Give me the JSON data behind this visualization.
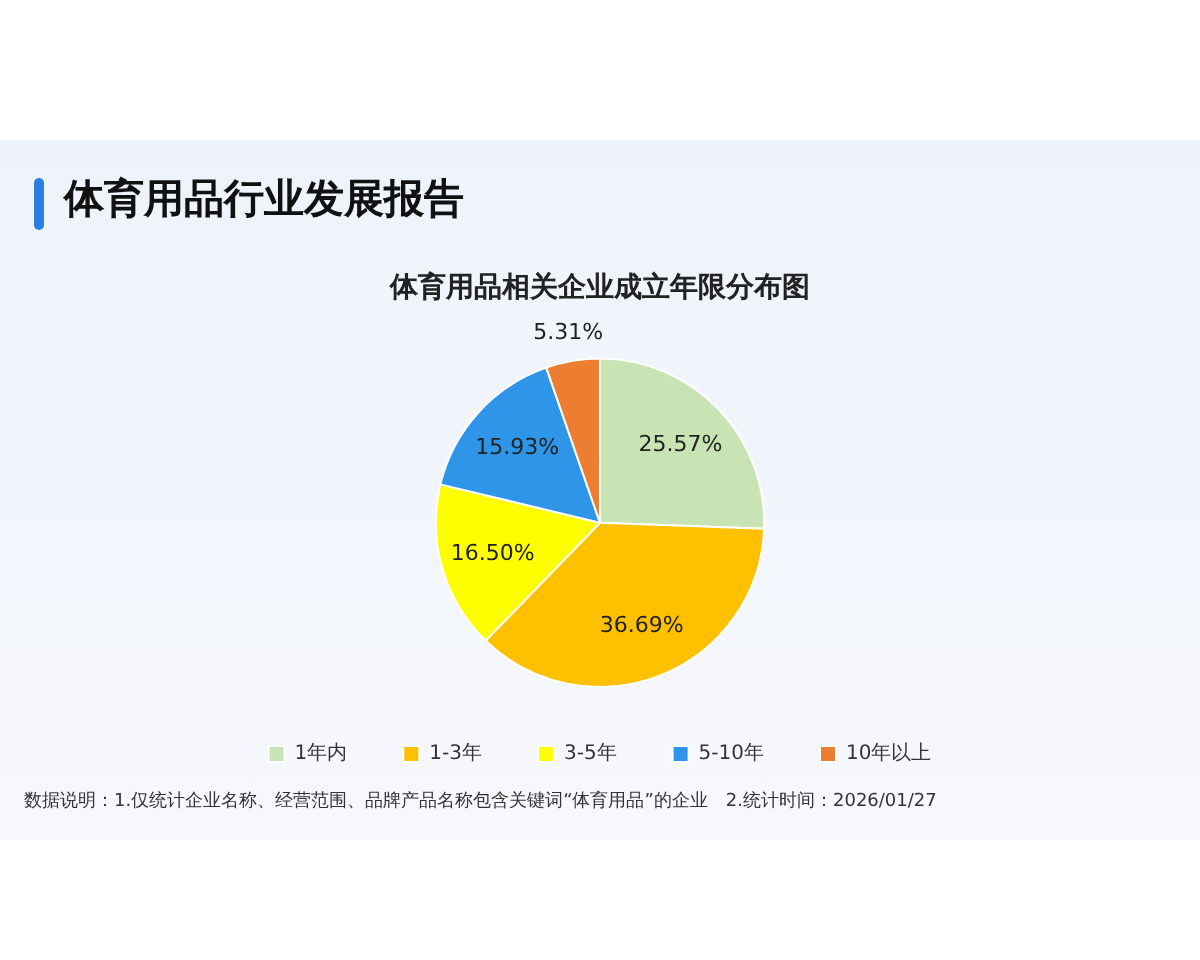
{
  "chart_data": {
    "type": "pie",
    "title": "体育用品行业发展报告",
    "subtitle": "体育用品相关企业成立年限分布图",
    "categories": [
      "1年内",
      "1-3年",
      "3-5年",
      "5-10年",
      "10年以上"
    ],
    "values": [
      25.57,
      36.69,
      16.5,
      15.93,
      5.31
    ],
    "value_labels": [
      "25.57%",
      "36.69%",
      "16.50%",
      "15.93%",
      "5.31%"
    ],
    "colors": [
      "#c9e4b4",
      "#ffc000",
      "#ffff00",
      "#2e95e8",
      "#ed7d31"
    ],
    "legend": "bottom",
    "annotations": [
      "数据说明：1.仅统计企业名称、经营范围、品牌产品名称包含关键词“体育用品”的企业　2.统计时间：2026/01/27"
    ]
  }
}
